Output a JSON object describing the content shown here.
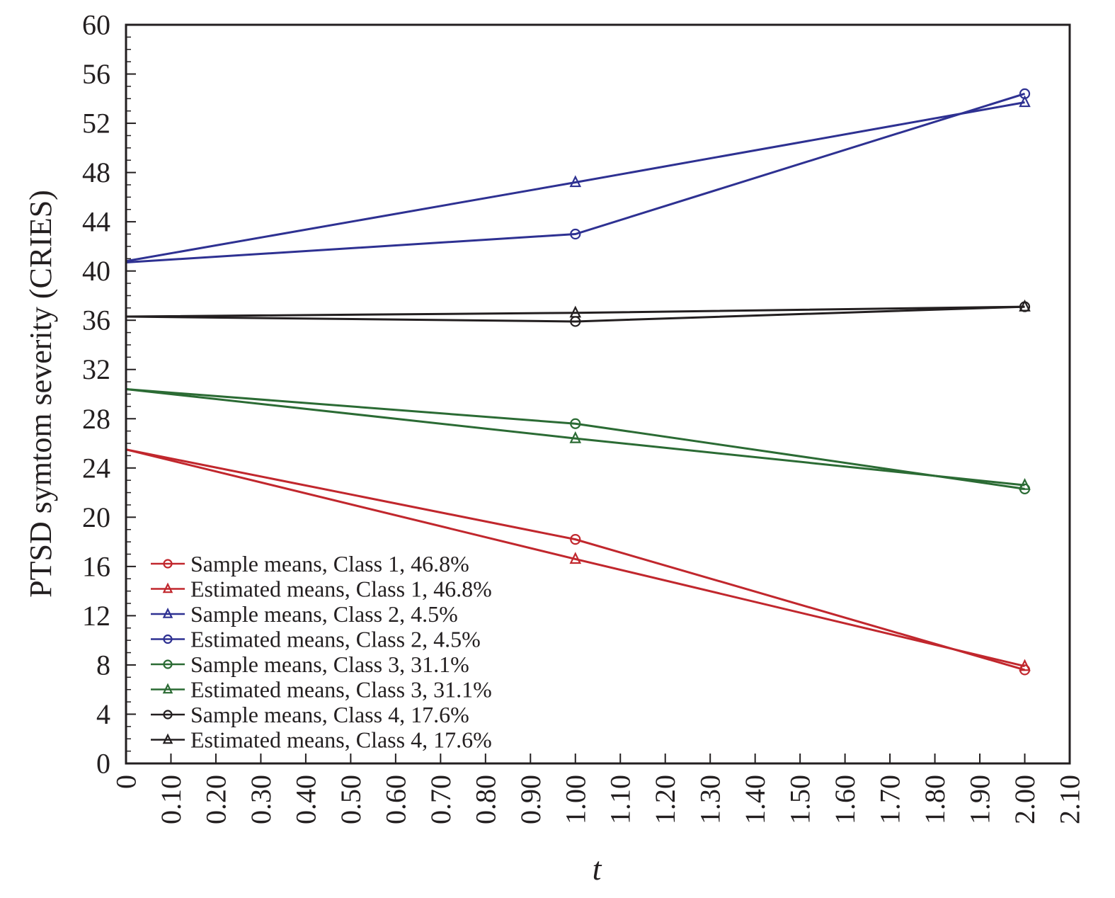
{
  "chart_data": {
    "type": "line",
    "title": "",
    "xlabel": "t",
    "ylabel": "PTSD symtom severity (CRIES)",
    "xlim": [
      0,
      2.1
    ],
    "ylim": [
      0,
      60
    ],
    "x_ticks": [
      "0",
      "0.10",
      "0.20",
      "0.30",
      "0.40",
      "0.50",
      "0.60",
      "0.70",
      "0.80",
      "0.90",
      "1.00",
      "1.10",
      "1.20",
      "1.30",
      "1.40",
      "1.50",
      "1.60",
      "1.70",
      "1.80",
      "1.90",
      "2.00",
      "2.10"
    ],
    "y_ticks": [
      "0",
      "4",
      "8",
      "12",
      "16",
      "20",
      "24",
      "28",
      "32",
      "36",
      "40",
      "44",
      "48",
      "52",
      "56",
      "60"
    ],
    "x": [
      0,
      1,
      2
    ],
    "legend_position": "bottom-left",
    "grid": false,
    "series": [
      {
        "name": "Sample means, Class 1, 46.8%",
        "color": "#c1272d",
        "marker": "circle",
        "values": [
          25.5,
          18.2,
          7.6
        ]
      },
      {
        "name": "Estimated means, Class 1, 46.8%",
        "color": "#c1272d",
        "marker": "triangle",
        "values": [
          25.5,
          16.6,
          7.9
        ]
      },
      {
        "name": "Sample means, Class 2, 4.5%",
        "color": "#2e3192",
        "marker": "triangle",
        "values": [
          40.8,
          47.2,
          53.7
        ]
      },
      {
        "name": "Estimated means, Class 2, 4.5%",
        "color": "#2e3192",
        "marker": "circle",
        "values": [
          40.7,
          43.0,
          54.4
        ]
      },
      {
        "name": "Sample means, Class 3, 31.1%",
        "color": "#2b6b34",
        "marker": "circle",
        "values": [
          30.4,
          27.6,
          22.3
        ]
      },
      {
        "name": "Estimated means, Class 3, 31.1%",
        "color": "#2b6b34",
        "marker": "triangle",
        "values": [
          30.4,
          26.4,
          22.6
        ]
      },
      {
        "name": "Sample means, Class 4, 17.6%",
        "color": "#231f20",
        "marker": "circle",
        "values": [
          36.3,
          35.9,
          37.1
        ]
      },
      {
        "name": "Estimated means, Class 4, 17.6%",
        "color": "#231f20",
        "marker": "triangle",
        "values": [
          36.3,
          36.6,
          37.1
        ]
      }
    ]
  }
}
